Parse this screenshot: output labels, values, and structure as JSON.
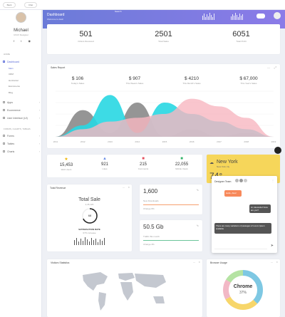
{
  "topbar": {
    "back_label": "Back",
    "chat_label": "Chat",
    "nav_label": "DARK",
    "search_placeholder": "Search"
  },
  "hero": {
    "title": "Dashboard",
    "subtitle": "Welcome to dash"
  },
  "profile": {
    "name": "Michael",
    "role": "UI/UX Designer"
  },
  "sidebar": {
    "section1": "HOME",
    "items": [
      {
        "label": "Dashboard"
      },
      {
        "label": "Main"
      },
      {
        "label": "CRM"
      },
      {
        "label": "Horizontal"
      },
      {
        "label": "Ecommerce"
      },
      {
        "label": "Blog"
      },
      {
        "label": "Apps"
      },
      {
        "label": "Ecommerce"
      },
      {
        "label": "User Interface (UI)"
      }
    ],
    "section2": "FORMS, CHARTS, TABLES",
    "items2": [
      {
        "label": "Forms"
      },
      {
        "label": "Tables"
      },
      {
        "label": "Charts"
      }
    ]
  },
  "stats": [
    {
      "value": "501",
      "label": "Orders Received"
    },
    {
      "value": "2501",
      "label": "Total Sales"
    },
    {
      "value": "6051",
      "label": "Total Profit"
    }
  ],
  "sales_report": {
    "title": "Sales Report",
    "kpis": [
      {
        "value": "$ 106",
        "label": "Today's Sales"
      },
      {
        "value": "$ 907",
        "label": "This Week's Sales"
      },
      {
        "value": "$ 4210",
        "label": "This Month's Sales"
      },
      {
        "value": "$ 67,000",
        "label": "This Year's Sales"
      }
    ],
    "colors": {
      "grey": "#8f8f8f",
      "cyan": "#28d7e2",
      "pink": "#f7b7c0"
    }
  },
  "chart_data": {
    "type": "area",
    "x": [
      "2011",
      "2012",
      "2013",
      "2014",
      "2015",
      "2016",
      "2017",
      "2018",
      "2019"
    ],
    "series": [
      {
        "values": [
          0,
          70,
          10,
          90,
          0,
          20,
          0,
          10,
          0
        ]
      },
      {
        "values": [
          0,
          30,
          110,
          10,
          90,
          60,
          40,
          20,
          0
        ]
      },
      {
        "values": [
          0,
          20,
          40,
          50,
          60,
          100,
          80,
          50,
          0
        ]
      }
    ]
  },
  "metrics": [
    {
      "value": "15,453",
      "label": "Web Users"
    },
    {
      "value": "921",
      "label": "Likes"
    },
    {
      "value": "215",
      "label": "Comments"
    },
    {
      "value": "22,055",
      "label": "Mobile Views"
    }
  ],
  "weather": {
    "city": "New York",
    "country": "New York, Ny",
    "temp": "74°"
  },
  "chat": {
    "name": "Designer Team",
    "messages": [
      {
        "text": "Hello, Alex!"
      },
      {
        "text": "Hi, Alexander! How are you?"
      },
      {
        "text": "There are many variations of passages of Lorem Ipsum available"
      }
    ]
  },
  "total_revenue": {
    "title": "Total Revenue",
    "heading": "Total Sale",
    "amount": "2,45,124",
    "gauge_value": "68",
    "rate_label": "SATISFACTION RATE",
    "rate_note": "67% increase"
  },
  "mini_cards": [
    {
      "value": "1,600",
      "label": "New Downloads",
      "note": "Change 6%"
    },
    {
      "value": "50.5 Gb",
      "label": "Traffic this month",
      "note": "Change 4%"
    }
  ],
  "visitors": {
    "title": "Visitors Statistics"
  },
  "browser": {
    "title": "Browser Usage",
    "name": "Chrome",
    "percent": "37%"
  }
}
